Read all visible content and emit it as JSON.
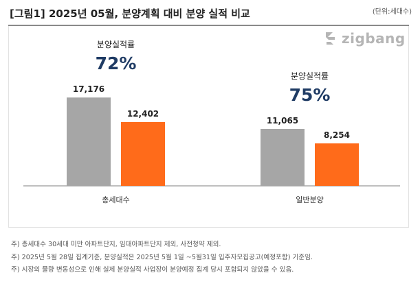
{
  "header": {
    "title": "[그림1] 2025년 05월, 분양계획 대비 분양 실적 비교",
    "unit": "(단위:세대수)"
  },
  "brand": {
    "name": "zigbang",
    "icon": "zigbang-logo-icon",
    "color": "#b5b5b5"
  },
  "chart_data": {
    "type": "bar",
    "categories": [
      "총세대수",
      "일반분양"
    ],
    "series": [
      {
        "values": [
          17176,
          11065
        ],
        "color": "#a6a6a6"
      },
      {
        "values": [
          12402,
          8254
        ],
        "color": "#ff6b1a"
      }
    ],
    "value_labels": [
      [
        "17,176",
        "11,065"
      ],
      [
        "12,402",
        "8,254"
      ]
    ],
    "annotations": [
      {
        "category": "총세대수",
        "label": "분양실적률",
        "value": "72%"
      },
      {
        "category": "일반분양",
        "label": "분양실적률",
        "value": "75%"
      }
    ],
    "ylim": [
      0,
      24000
    ],
    "grid": false,
    "legend": "none",
    "title": "",
    "xlabel": "",
    "ylabel": ""
  },
  "footnotes": [
    "주) 총세대수 30세대 미만 아파트단지, 임대아파트단지 제외, 사전청약 제외.",
    "주) 2025년 5월 28일 집계기준, 분양실적은 2025년 5월 1일 ~5월31일 입주자모집공고(예정포함) 기준임.",
    "주) 시장의 물량 변동성으로 인해 실제 분양실적 사업장이 분양예정 집계 당시 포함되지 않았을 수 있음."
  ],
  "colors": {
    "rate_value": "#1f3b64",
    "baseline": "#7f7f7f"
  }
}
